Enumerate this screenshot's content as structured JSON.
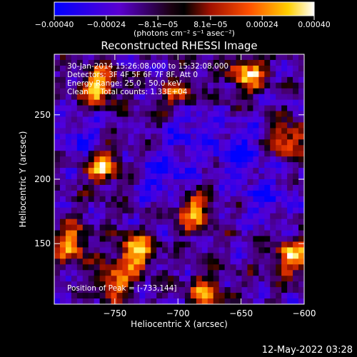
{
  "chart_data": {
    "type": "heatmap",
    "title": "Reconstructed RHESSI Image",
    "xlabel": "Heliocentric X (arcsec)",
    "ylabel": "Heliocentric Y (arcsec)",
    "xlim": [
      -798,
      -600
    ],
    "ylim": [
      103,
      297
    ],
    "xticks": [
      {
        "value": -750,
        "label": "−750"
      },
      {
        "value": -700,
        "label": "−700"
      },
      {
        "value": -650,
        "label": "−650"
      },
      {
        "value": -600,
        "label": "−600"
      }
    ],
    "yticks": [
      {
        "value": 150,
        "label": "150"
      },
      {
        "value": 200,
        "label": "200"
      },
      {
        "value": 250,
        "label": "250"
      }
    ],
    "colorbar": {
      "min": -0.0004,
      "max": 0.0004,
      "ticks": [
        {
          "value": -0.0004,
          "label": "−0.00040"
        },
        {
          "value": -0.00024,
          "label": "−0.00024"
        },
        {
          "value": -8.1e-05,
          "label": "−8.1e−05"
        },
        {
          "value": 8.1e-05,
          "label": "8.1e−05"
        },
        {
          "value": 0.00024,
          "label": "0.00024"
        },
        {
          "value": 0.0004,
          "label": "0.00040"
        }
      ],
      "unit_label": "(photons cm⁻² s⁻¹ asec⁻²)"
    },
    "annotations": {
      "time_range": "30-Jan-2014 15:26:08.000 to 15:32:08.000",
      "detectors": "Detectors: 3F 4F 5F 6F 7F 8F, Att 0",
      "energy_range": "Energy Range: 25.0 - 50.0 keV",
      "clean_counts": "Clean     Total counts: 1.33E+04",
      "peak_position": "Position of Peak = [-733,144]"
    },
    "hot_spots": [
      {
        "x": -763,
        "y": 272,
        "level": 0.95
      },
      {
        "x": -760,
        "y": 210,
        "level": 0.85
      },
      {
        "x": -733,
        "y": 144,
        "level": 1.0
      },
      {
        "x": -785,
        "y": 150,
        "level": 0.8
      },
      {
        "x": -645,
        "y": 282,
        "level": 0.9
      },
      {
        "x": -688,
        "y": 175,
        "level": 0.8
      },
      {
        "x": -678,
        "y": 112,
        "level": 0.7
      },
      {
        "x": -610,
        "y": 140,
        "level": 0.85
      },
      {
        "x": -612,
        "y": 230,
        "level": 0.75
      },
      {
        "x": -700,
        "y": 265,
        "level": 0.6
      },
      {
        "x": -750,
        "y": 120,
        "level": 0.75
      }
    ],
    "cold_spots": [
      {
        "x": -652,
        "y": 220,
        "level": 0.95
      },
      {
        "x": -710,
        "y": 200,
        "level": 0.85
      },
      {
        "x": -690,
        "y": 240,
        "level": 0.7
      },
      {
        "x": -630,
        "y": 185,
        "level": 0.7
      },
      {
        "x": -775,
        "y": 232,
        "level": 0.6
      }
    ]
  },
  "footer": {
    "timestamp": "12-May-2022 03:28"
  }
}
